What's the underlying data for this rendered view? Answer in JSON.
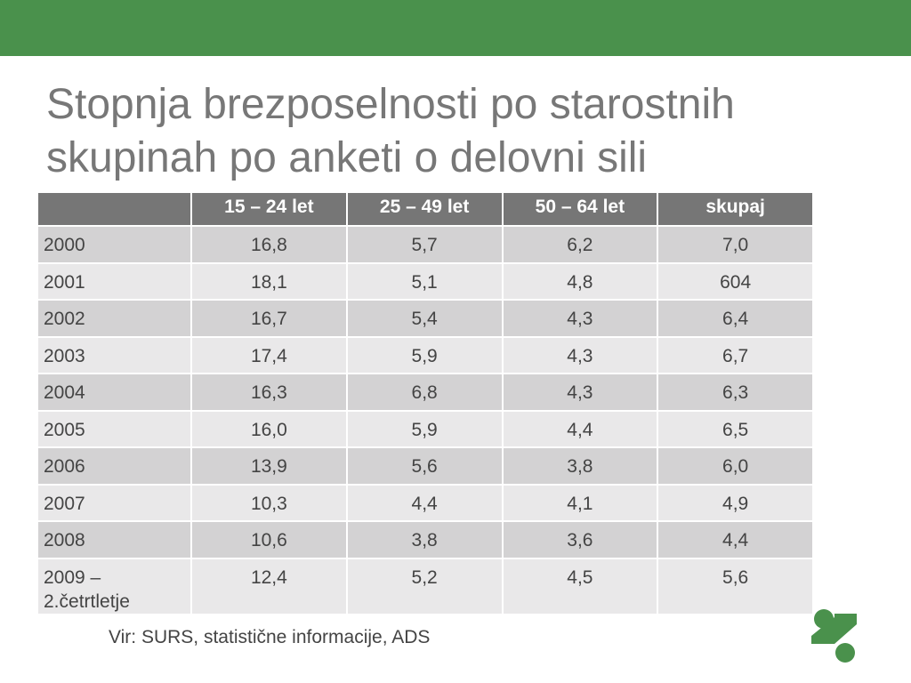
{
  "slide": {
    "title_line1": "Stopnja brezposelnosti po starostnih",
    "title_line2": "skupinah po anketi o delovni sili",
    "source": "Vir: SURS, statistične informacije, ADS"
  },
  "table": {
    "headers": [
      "",
      "15 – 24 let",
      "25 – 49 let",
      "50 – 64 let",
      "skupaj"
    ],
    "rows": [
      {
        "year": "2000",
        "values": [
          "16,8",
          "5,7",
          "6,2",
          "7,0"
        ]
      },
      {
        "year": "2001",
        "values": [
          "18,1",
          "5,1",
          "4,8",
          "604"
        ]
      },
      {
        "year": "2002",
        "values": [
          "16,7",
          "5,4",
          "4,3",
          "6,4"
        ]
      },
      {
        "year": "2003",
        "values": [
          "17,4",
          "5,9",
          "4,3",
          "6,7"
        ]
      },
      {
        "year": "2004",
        "values": [
          "16,3",
          "6,8",
          "4,3",
          "6,3"
        ]
      },
      {
        "year": "2005",
        "values": [
          "16,0",
          "5,9",
          "4,4",
          "6,5"
        ]
      },
      {
        "year": "2006",
        "values": [
          "13,9",
          "5,6",
          "3,8",
          "6,0"
        ]
      },
      {
        "year": "2007",
        "values": [
          "10,3",
          "4,4",
          "4,1",
          "4,9"
        ]
      },
      {
        "year": "2008",
        "values": [
          "10,6",
          "3,8",
          "3,6",
          "4,4"
        ]
      },
      {
        "year": "2009 –\n2.četrtletje",
        "values": [
          "12,4",
          "5,2",
          "4,5",
          "5,6"
        ]
      }
    ]
  },
  "colors": {
    "band": "#4a914c",
    "header_bg": "#767676",
    "row_dark": "#d3d2d3",
    "row_light": "#e9e8e9",
    "logo": "#4a914c"
  },
  "icons": {
    "logo": "green-question-mark-logo-icon"
  }
}
